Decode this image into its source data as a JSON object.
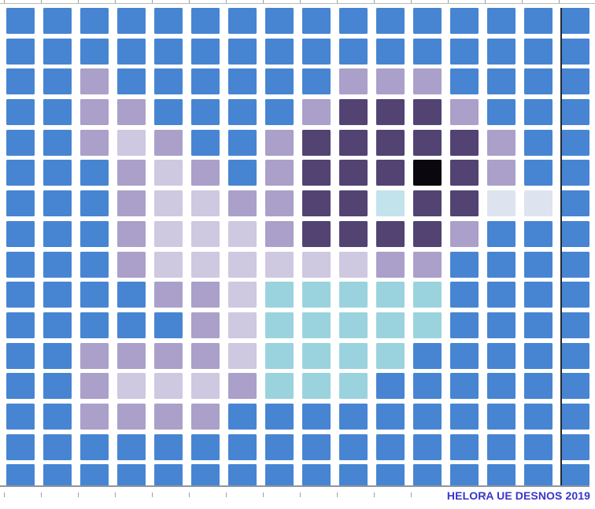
{
  "caption": {
    "text": "HELORA UE DESNOS 2019",
    "color": "#3a35cb"
  },
  "palette": {
    "B": "#4785d2",
    "L": "#aba0c9",
    "LL": "#cfc8e1",
    "P": "#524373",
    "K": "#0a080e",
    "C": "#9ad3de",
    "C1": "#c2e3eb",
    "W": "#dde4ef"
  },
  "chrome": {
    "ruler_line_color": "#b6bcb2",
    "tick_color": "#98a0a6",
    "bottom_line_color": "#8e96a0",
    "page_break_line_color": "#1f2b38"
  },
  "grid": {
    "columns": 16,
    "rows": 16,
    "cells": [
      [
        "B",
        "B",
        "B",
        "B",
        "B",
        "B",
        "B",
        "B",
        "B",
        "B",
        "B",
        "B",
        "B",
        "B",
        "B",
        "B"
      ],
      [
        "B",
        "B",
        "B",
        "B",
        "B",
        "B",
        "B",
        "B",
        "B",
        "B",
        "B",
        "B",
        "B",
        "B",
        "B",
        "B"
      ],
      [
        "B",
        "B",
        "L",
        "B",
        "B",
        "B",
        "B",
        "B",
        "B",
        "L",
        "L",
        "L",
        "B",
        "B",
        "B",
        "B"
      ],
      [
        "B",
        "B",
        "L",
        "L",
        "B",
        "B",
        "B",
        "B",
        "L",
        "P",
        "P",
        "P",
        "L",
        "B",
        "B",
        "B"
      ],
      [
        "B",
        "B",
        "L",
        "LL",
        "L",
        "B",
        "B",
        "L",
        "P",
        "P",
        "P",
        "P",
        "P",
        "L",
        "B",
        "B"
      ],
      [
        "B",
        "B",
        "B",
        "L",
        "LL",
        "L",
        "B",
        "L",
        "P",
        "P",
        "P",
        "K",
        "P",
        "L",
        "B",
        "B"
      ],
      [
        "B",
        "B",
        "B",
        "L",
        "LL",
        "LL",
        "L",
        "L",
        "P",
        "P",
        "C1",
        "P",
        "P",
        "W",
        "W",
        "B"
      ],
      [
        "B",
        "B",
        "B",
        "L",
        "LL",
        "LL",
        "LL",
        "L",
        "P",
        "P",
        "P",
        "P",
        "L",
        "B",
        "B",
        "B"
      ],
      [
        "B",
        "B",
        "B",
        "L",
        "LL",
        "LL",
        "LL",
        "LL",
        "LL",
        "LL",
        "L",
        "L",
        "B",
        "B",
        "B",
        "B"
      ],
      [
        "B",
        "B",
        "B",
        "B",
        "L",
        "L",
        "LL",
        "C",
        "C",
        "C",
        "C",
        "C",
        "B",
        "B",
        "B",
        "B"
      ],
      [
        "B",
        "B",
        "B",
        "B",
        "B",
        "L",
        "LL",
        "C",
        "C",
        "C",
        "C",
        "C",
        "B",
        "B",
        "B",
        "B"
      ],
      [
        "B",
        "B",
        "L",
        "L",
        "L",
        "L",
        "LL",
        "C",
        "C",
        "C",
        "C",
        "B",
        "B",
        "B",
        "B",
        "B"
      ],
      [
        "B",
        "B",
        "L",
        "LL",
        "LL",
        "LL",
        "L",
        "C",
        "C",
        "C",
        "B",
        "B",
        "B",
        "B",
        "B",
        "B"
      ],
      [
        "B",
        "B",
        "L",
        "L",
        "L",
        "L",
        "B",
        "B",
        "B",
        "B",
        "B",
        "B",
        "B",
        "B",
        "B",
        "B"
      ],
      [
        "B",
        "B",
        "B",
        "B",
        "B",
        "B",
        "B",
        "B",
        "B",
        "B",
        "B",
        "B",
        "B",
        "B",
        "B",
        "B"
      ],
      [
        "B",
        "B",
        "B",
        "B",
        "B",
        "B",
        "B",
        "B",
        "B",
        "B",
        "B",
        "B",
        "B",
        "B",
        "B",
        "B"
      ]
    ]
  }
}
